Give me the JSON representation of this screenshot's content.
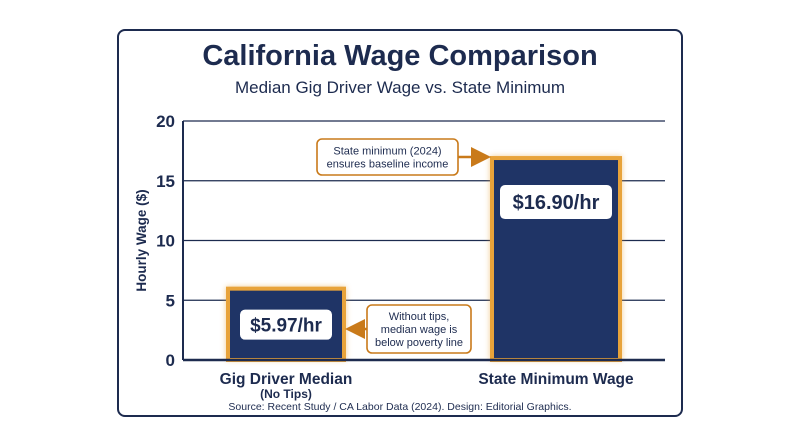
{
  "title": "California Wage Comparison",
  "subtitle": "Median Gig Driver Wage vs. State Minimum",
  "footer": "Source: Recent Study / CA Labor Data (2024). Design: Editorial Graphics.",
  "colors": {
    "navy": "#1d2b4f",
    "bar": "#1f3466",
    "accent": "#e8a33a",
    "arrow": "#c97a1a"
  },
  "chart_data": {
    "type": "bar",
    "ylabel": "Hourly Wage ($)",
    "ylim": [
      0,
      20
    ],
    "yticks": [
      "0",
      "5",
      "10",
      "15",
      "20"
    ],
    "categories": [
      "Gig Driver Median",
      "State Minimum Wage"
    ],
    "category_sublabels": [
      "(No Tips)",
      ""
    ],
    "values": [
      5.97,
      16.9
    ],
    "value_labels": [
      "$5.97/hr",
      "$16.90/hr"
    ],
    "annotations": [
      {
        "lines": [
          "Without tips,",
          "median wage is",
          "below poverty line"
        ]
      },
      {
        "lines": [
          "State minimum (2024)",
          "ensures baseline income"
        ]
      }
    ],
    "grid": true,
    "legend": "none"
  }
}
